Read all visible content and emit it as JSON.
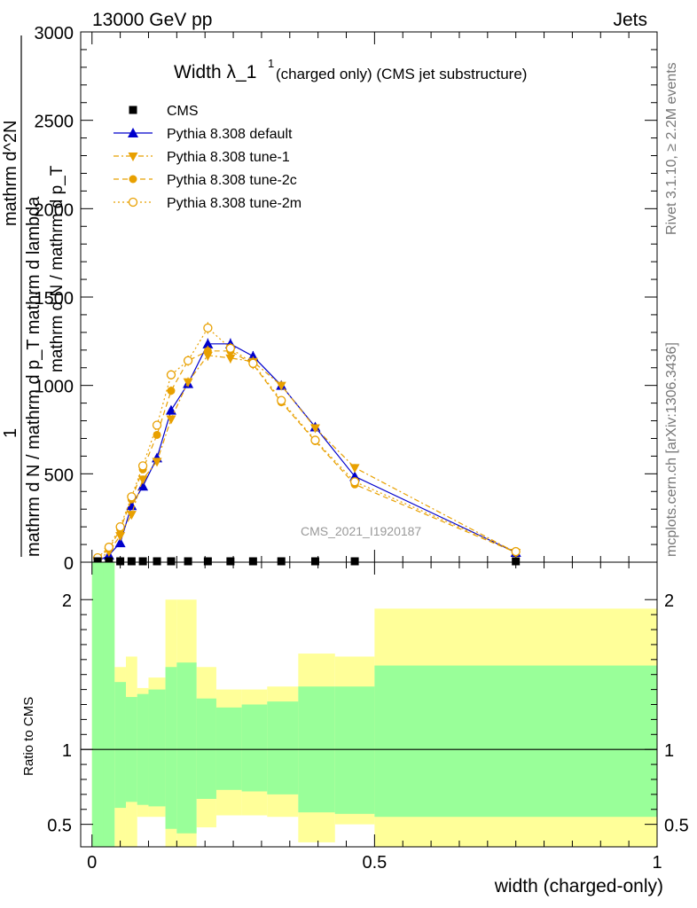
{
  "header": {
    "energy": "13000 GeV pp",
    "category": "Jets",
    "side_label_top": "Rivet 3.1.10, ≥ 2.2M events",
    "side_label_bottom": "mcplots.cern.ch [arXiv:1306.3436]",
    "watermark": "CMS_2021_I1920187"
  },
  "colors": {
    "cms": "#000000",
    "default": "#0000cc",
    "tunes": "#e8a000",
    "band_inner": "#99ff99",
    "band_outer": "#ffff99"
  },
  "chart_data": [
    {
      "type": "line",
      "panel": "main",
      "title_main": "Width λ_1",
      "title_sup": "1",
      "title_rest": "(charged only) (CMS jet substructure)",
      "ylabel_left": "mathrm d N / mathrm d p_T mathrm d lambda",
      "ylabel_right": "mathrm d^2N",
      "ylabel_frac_num": "1",
      "ylabel_frac_den": "mathrm d N / mathrm d p_T",
      "ylim": [
        0,
        3000
      ],
      "xlim": [
        -0.02,
        1.0
      ],
      "yticks": [
        0,
        500,
        1000,
        1500,
        2000,
        2500,
        3000
      ],
      "ytick_labels": [
        "0",
        "500",
        "1000",
        "1500",
        "2000",
        "2500",
        "3000"
      ],
      "legend_position": "top-left",
      "series": [
        {
          "name": "CMS",
          "x": [
            0.01,
            0.03,
            0.05,
            0.07,
            0.09,
            0.115,
            0.14,
            0.17,
            0.205,
            0.245,
            0.285,
            0.335,
            0.395,
            0.465,
            0.75
          ],
          "y": [
            5,
            5,
            5,
            5,
            5,
            5,
            5,
            5,
            5,
            5,
            5,
            5,
            5,
            5,
            5
          ]
        },
        {
          "name": "Pythia 8.308 default",
          "x": [
            0.01,
            0.03,
            0.05,
            0.07,
            0.09,
            0.115,
            0.14,
            0.17,
            0.205,
            0.245,
            0.285,
            0.335,
            0.395,
            0.465,
            0.75
          ],
          "y": [
            5,
            40,
            110,
            320,
            430,
            590,
            860,
            1010,
            1235,
            1235,
            1165,
            1000,
            765,
            485,
            55
          ]
        },
        {
          "name": "Pythia 8.308 tune-1",
          "x": [
            0.01,
            0.03,
            0.05,
            0.07,
            0.09,
            0.115,
            0.14,
            0.17,
            0.205,
            0.245,
            0.285,
            0.335,
            0.395,
            0.465,
            0.75
          ],
          "y": [
            10,
            60,
            150,
            270,
            470,
            570,
            810,
            1020,
            1170,
            1155,
            1135,
            1000,
            760,
            535,
            55
          ]
        },
        {
          "name": "Pythia 8.308 tune-2c",
          "x": [
            0.01,
            0.03,
            0.05,
            0.07,
            0.09,
            0.115,
            0.14,
            0.17,
            0.205,
            0.245,
            0.285,
            0.335,
            0.395,
            0.465,
            0.75
          ],
          "y": [
            20,
            75,
            185,
            355,
            525,
            720,
            970,
            1140,
            1195,
            1195,
            1120,
            905,
            685,
            440,
            55
          ]
        },
        {
          "name": "Pythia 8.308 tune-2m",
          "x": [
            0.01,
            0.03,
            0.05,
            0.07,
            0.09,
            0.115,
            0.14,
            0.17,
            0.205,
            0.245,
            0.285,
            0.335,
            0.395,
            0.465,
            0.75
          ],
          "y": [
            25,
            85,
            200,
            370,
            545,
            775,
            1060,
            1140,
            1325,
            1210,
            1125,
            915,
            690,
            455,
            60
          ]
        }
      ]
    },
    {
      "type": "area",
      "panel": "ratio",
      "ylabel": "Ratio to CMS",
      "xlabel": "width (charged-only)",
      "ylim": [
        0.35,
        2.25
      ],
      "yticks": [
        0.5,
        1,
        2
      ],
      "ytick_labels": [
        "0.5",
        "1",
        "2"
      ],
      "xticks": [
        0,
        0.5,
        1
      ],
      "xtick_labels": [
        "0",
        "0.5",
        "1"
      ],
      "bin_edges": [
        0,
        0.02,
        0.04,
        0.06,
        0.08,
        0.1,
        0.13,
        0.15,
        0.185,
        0.22,
        0.265,
        0.31,
        0.365,
        0.43,
        0.5,
        1.0
      ],
      "inner_band_high": [
        2.25,
        2.25,
        1.45,
        1.35,
        1.37,
        1.4,
        1.55,
        1.58,
        1.34,
        1.28,
        1.3,
        1.32,
        1.42,
        1.42,
        1.56
      ],
      "inner_band_low": [
        0.35,
        0.35,
        0.61,
        0.65,
        0.63,
        0.62,
        0.47,
        0.44,
        0.67,
        0.73,
        0.72,
        0.7,
        0.58,
        0.57,
        0.55
      ],
      "outer_band_high": [
        2.25,
        2.25,
        1.55,
        1.62,
        1.41,
        1.48,
        2.0,
        2.0,
        1.55,
        1.4,
        1.4,
        1.42,
        1.64,
        1.62,
        1.94
      ],
      "outer_band_low": [
        0.35,
        0.35,
        0.35,
        0.35,
        0.55,
        0.55,
        0.35,
        0.35,
        0.48,
        0.56,
        0.56,
        0.55,
        0.38,
        0.5,
        0.35
      ],
      "reference_line": 1
    }
  ]
}
